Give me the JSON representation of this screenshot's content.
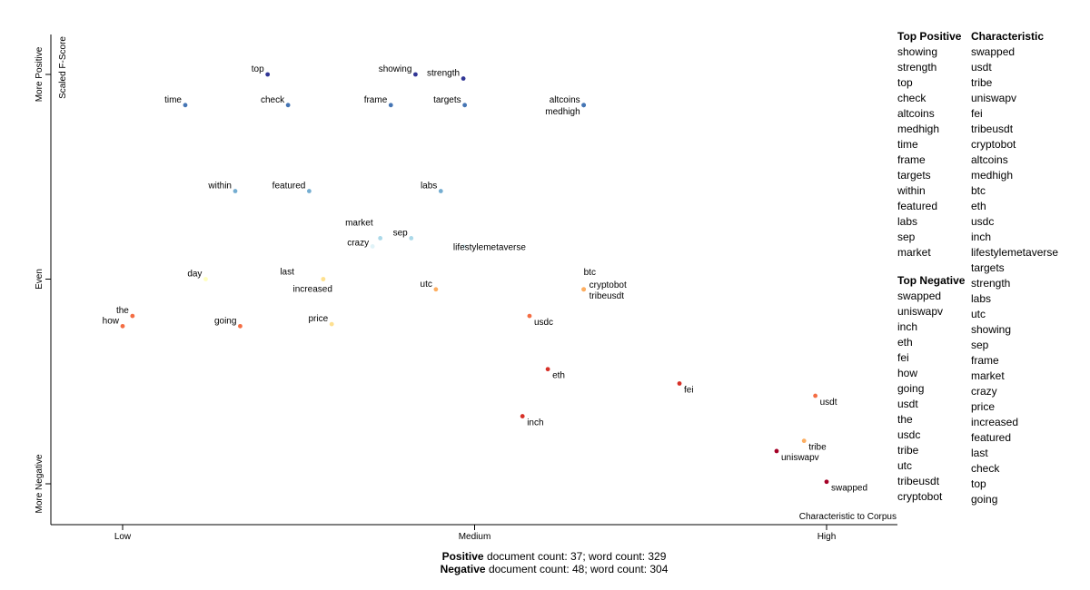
{
  "chart_data": {
    "type": "scatter",
    "x_axis": {
      "title": "Characteristic to Corpus",
      "tick_labels": [
        "Low",
        "Medium",
        "High"
      ]
    },
    "y_axis": {
      "title": "Scaled F-Score",
      "tick_labels": [
        "More Negative",
        "Even",
        "More Positive"
      ]
    },
    "scale": {
      "x_range": [
        0,
        1
      ],
      "y_range": [
        -1,
        1
      ]
    },
    "points": [
      {
        "term": "top",
        "x": 0.206,
        "y": 1.0,
        "color": "#313695"
      },
      {
        "term": "showing",
        "x": 0.416,
        "y": 1.0,
        "color": "#313695"
      },
      {
        "term": "strength",
        "x": 0.484,
        "y": 0.98,
        "color": "#313695"
      },
      {
        "term": "time",
        "x": 0.089,
        "y": 0.85,
        "color": "#4575b4"
      },
      {
        "term": "check",
        "x": 0.235,
        "y": 0.85,
        "color": "#4575b4"
      },
      {
        "term": "frame",
        "x": 0.381,
        "y": 0.85,
        "color": "#4575b4"
      },
      {
        "term": "targets",
        "x": 0.486,
        "y": 0.85,
        "color": "#4575b4"
      },
      {
        "term": "altcoins",
        "x": 0.655,
        "y": 0.85,
        "color": "#4575b4"
      },
      {
        "term": "medhigh",
        "x": 0.655,
        "y": 0.85,
        "color": "#4575b4"
      },
      {
        "term": "within",
        "x": 0.16,
        "y": 0.43,
        "color": "#74add1"
      },
      {
        "term": "featured",
        "x": 0.265,
        "y": 0.43,
        "color": "#74add1"
      },
      {
        "term": "labs",
        "x": 0.452,
        "y": 0.43,
        "color": "#74add1"
      },
      {
        "term": "market",
        "x": 0.366,
        "y": 0.2,
        "color": "#abd9e9"
      },
      {
        "term": "sep",
        "x": 0.41,
        "y": 0.2,
        "color": "#abd9e9"
      },
      {
        "term": "crazy",
        "x": 0.355,
        "y": 0.16,
        "color": "#e0f3f8"
      },
      {
        "term": "lifestylemetaverse",
        "x": 0.485,
        "y": 0.16,
        "color": "#e0f3f8"
      },
      {
        "term": "day",
        "x": 0.118,
        "y": 0.0,
        "color": "#ffffbf"
      },
      {
        "term": "last",
        "x": 0.285,
        "y": 0.0,
        "color": "#ffffbf"
      },
      {
        "term": "increased",
        "x": 0.285,
        "y": 0.0,
        "color": "#fee090"
      },
      {
        "term": "utc",
        "x": 0.445,
        "y": -0.05,
        "color": "#fdae61"
      },
      {
        "term": "btc",
        "x": 0.655,
        "y": -0.05,
        "color": "#fdae61"
      },
      {
        "term": "cryptobot",
        "x": 0.655,
        "y": -0.05,
        "color": "#fdae61"
      },
      {
        "term": "tribeusdt",
        "x": 0.655,
        "y": -0.05,
        "color": "#fdae61"
      },
      {
        "term": "the",
        "x": 0.014,
        "y": -0.18,
        "color": "#f46d43"
      },
      {
        "term": "how",
        "x": 0.0,
        "y": -0.23,
        "color": "#f46d43"
      },
      {
        "term": "going",
        "x": 0.167,
        "y": -0.23,
        "color": "#f46d43"
      },
      {
        "term": "price",
        "x": 0.297,
        "y": -0.22,
        "color": "#fee090"
      },
      {
        "term": "usdc",
        "x": 0.578,
        "y": -0.18,
        "color": "#f46d43"
      },
      {
        "term": "eth",
        "x": 0.604,
        "y": -0.44,
        "color": "#d73027"
      },
      {
        "term": "fei",
        "x": 0.791,
        "y": -0.51,
        "color": "#d73027"
      },
      {
        "term": "inch",
        "x": 0.568,
        "y": -0.67,
        "color": "#d73027"
      },
      {
        "term": "usdt",
        "x": 0.984,
        "y": -0.57,
        "color": "#f46d43"
      },
      {
        "term": "tribe",
        "x": 0.968,
        "y": -0.79,
        "color": "#fdae61"
      },
      {
        "term": "uniswapv",
        "x": 0.929,
        "y": -0.84,
        "color": "#a50026"
      },
      {
        "term": "swapped",
        "x": 1.0,
        "y": -0.99,
        "color": "#a50026"
      }
    ]
  },
  "panel": {
    "top_positive_title": "Top Positive",
    "top_positive": [
      "showing",
      "strength",
      "top",
      "check",
      "altcoins",
      "medhigh",
      "time",
      "frame",
      "targets",
      "within",
      "featured",
      "labs",
      "sep",
      "market"
    ],
    "top_negative_title": "Top Negative",
    "top_negative": [
      "swapped",
      "uniswapv",
      "inch",
      "eth",
      "fei",
      "how",
      "going",
      "usdt",
      "the",
      "usdc",
      "tribe",
      "utc",
      "tribeusdt",
      "cryptobot"
    ],
    "characteristic_title": "Characteristic",
    "characteristic": [
      "swapped",
      "usdt",
      "tribe",
      "uniswapv",
      "fei",
      "tribeusdt",
      "cryptobot",
      "altcoins",
      "medhigh",
      "btc",
      "eth",
      "usdc",
      "inch",
      "lifestylemetaverse",
      "targets",
      "strength",
      "labs",
      "utc",
      "showing",
      "sep",
      "frame",
      "market",
      "crazy",
      "price",
      "increased",
      "featured",
      "last",
      "check",
      "top",
      "going"
    ]
  },
  "footer": {
    "positive_label": "Positive",
    "positive_text": " document count: 37; word count: 329",
    "negative_label": "Negative",
    "negative_text": " document count: 48; word count: 304"
  }
}
